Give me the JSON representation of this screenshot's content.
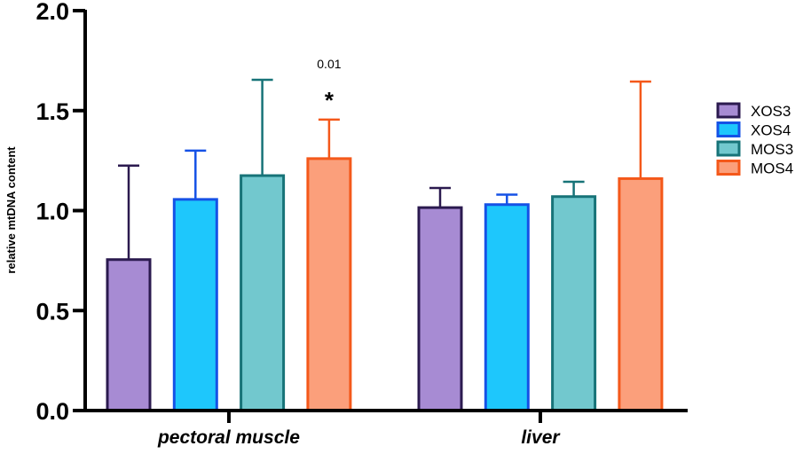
{
  "chart_data": {
    "type": "bar",
    "title": "",
    "xlabel": "",
    "ylabel": "relative mtDNA content",
    "ylim": [
      0,
      2.0
    ],
    "yticks": [
      "0.0",
      "0.5",
      "1.0",
      "1.5",
      "2.0"
    ],
    "ytick_values": [
      0,
      0.5,
      1.0,
      1.5,
      2.0
    ],
    "grid": false,
    "categories": [
      "pectoral muscle",
      "liver"
    ],
    "series": [
      {
        "name": "XOS3",
        "fill": "#a78bd3",
        "stroke": "#2b1a4f",
        "values": [
          0.755,
          1.015
        ],
        "error_upper": [
          1.225,
          1.113
        ]
      },
      {
        "name": "XOS4",
        "fill": "#1ec7fc",
        "stroke": "#1552e6",
        "values": [
          1.056,
          1.03
        ],
        "error_upper": [
          1.3,
          1.08
        ]
      },
      {
        "name": "MOS3",
        "fill": "#72c8ce",
        "stroke": "#177378",
        "values": [
          1.175,
          1.07
        ],
        "error_upper": [
          1.654,
          1.144
        ]
      },
      {
        "name": "MOS4",
        "fill": "#fb9f7b",
        "stroke": "#f4581a",
        "values": [
          1.26,
          1.16
        ],
        "error_upper": [
          1.455,
          1.645
        ]
      }
    ],
    "legend": {
      "position": "right",
      "entries": [
        "XOS3",
        "XOS4",
        "MOS3",
        "MOS4"
      ]
    },
    "annotations": [
      {
        "category": "pectoral muscle",
        "series": "MOS4",
        "p_value": "0.01",
        "marker": "*"
      }
    ]
  }
}
